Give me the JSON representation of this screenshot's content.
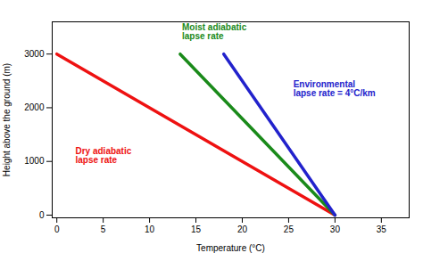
{
  "chart_data": {
    "type": "line",
    "xlabel": "Temperature (°C)",
    "ylabel": "Height above the ground (m)",
    "xlim": [
      -0.5,
      38
    ],
    "ylim": [
      -50,
      3600
    ],
    "xticks": [
      0,
      5,
      10,
      15,
      20,
      25,
      30,
      35
    ],
    "yticks": [
      0,
      1000,
      2000,
      3000
    ],
    "series": [
      {
        "color": "#ee1111",
        "x": [
          0,
          30
        ],
        "values": [
          3000,
          0
        ]
      },
      {
        "color": "#1a8a1a",
        "x": [
          13.3,
          30
        ],
        "values": [
          3000,
          0
        ]
      },
      {
        "color": "#2222cc",
        "x": [
          18.0,
          30
        ],
        "values": [
          3000,
          0
        ]
      }
    ],
    "annotations": [
      {
        "text": "Moist adiabatic\nlapse rate",
        "x": 13.5,
        "y": 3420,
        "color": "#1a8a1a"
      },
      {
        "text": "Environmental\nlapse rate = 4°C/km",
        "x": 25.5,
        "y": 2350,
        "color": "#2222cc"
      },
      {
        "text": "Dry adiabatic\nlapse rate",
        "x": 2.0,
        "y": 1100,
        "color": "#ee1111"
      }
    ]
  }
}
